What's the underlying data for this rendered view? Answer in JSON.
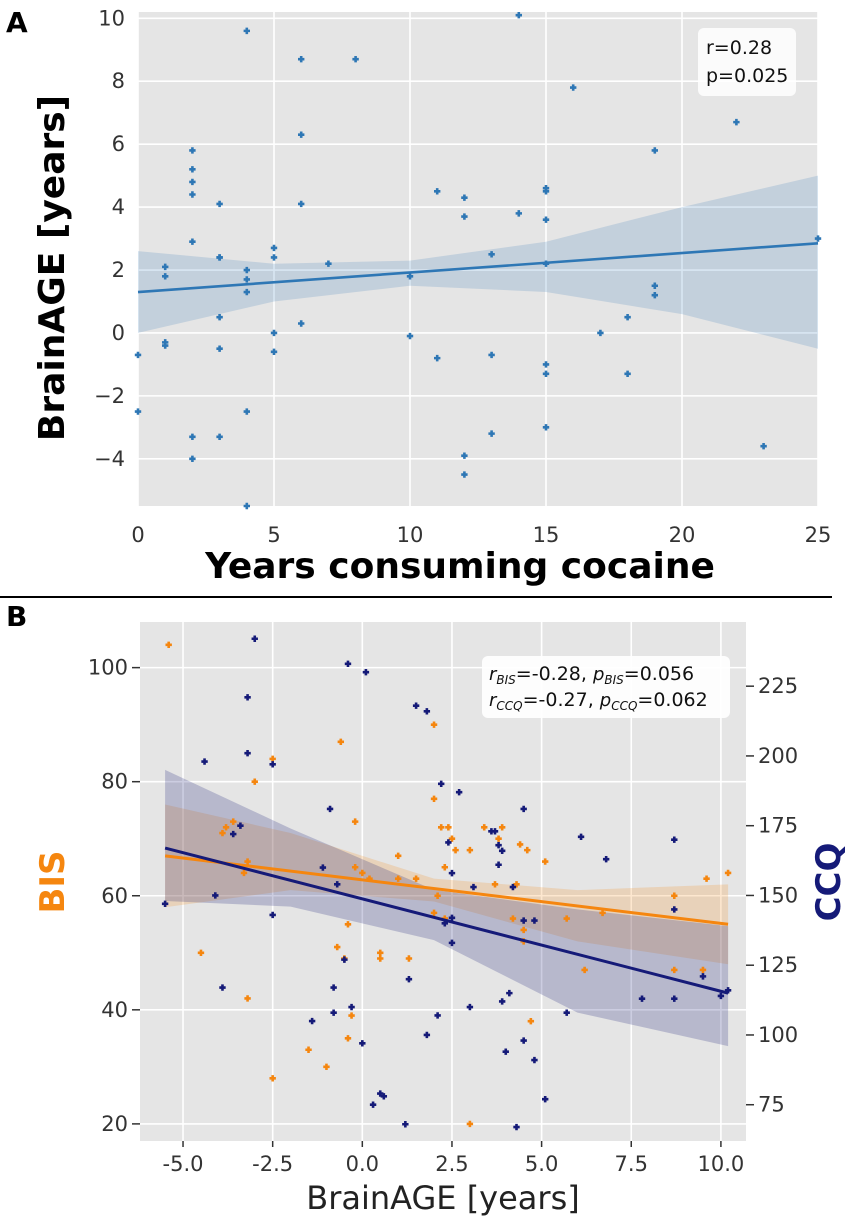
{
  "panels": {
    "a_label": "A",
    "b_label": "B"
  },
  "chart_data": [
    {
      "type": "scatter",
      "title": "",
      "xlabel": "Years consuming cocaine",
      "ylabel": "BrainAGE [years]",
      "xlim": [
        0,
        25
      ],
      "ylim": [
        -5.5,
        10.2
      ],
      "xticks": [
        0,
        5,
        10,
        15,
        20,
        25
      ],
      "yticks": [
        -4,
        -2,
        0,
        2,
        4,
        6,
        8,
        10
      ],
      "grid": true,
      "annotation": [
        "r=0.28",
        "p=0.025"
      ],
      "color": "#2e77b5",
      "points": [
        [
          4,
          9.6
        ],
        [
          6,
          8.7
        ],
        [
          8,
          8.7
        ],
        [
          14,
          10.1
        ],
        [
          16,
          7.8
        ],
        [
          22,
          6.7
        ],
        [
          6,
          6.3
        ],
        [
          2,
          5.8
        ],
        [
          19,
          5.8
        ],
        [
          2,
          5.2
        ],
        [
          2,
          4.8
        ],
        [
          2,
          4.4
        ],
        [
          3,
          4.1
        ],
        [
          6,
          4.1
        ],
        [
          11,
          4.5
        ],
        [
          12,
          4.3
        ],
        [
          12,
          3.7
        ],
        [
          14,
          3.8
        ],
        [
          15,
          4.5
        ],
        [
          15,
          4.6
        ],
        [
          15,
          3.6
        ],
        [
          2,
          2.9
        ],
        [
          3,
          2.4
        ],
        [
          3,
          2.4
        ],
        [
          5,
          2.7
        ],
        [
          5,
          2.4
        ],
        [
          7,
          2.2
        ],
        [
          13,
          2.5
        ],
        [
          15,
          2.2
        ],
        [
          25,
          3.0
        ],
        [
          1,
          2.1
        ],
        [
          1,
          1.8
        ],
        [
          4,
          2.0
        ],
        [
          4,
          1.7
        ],
        [
          4,
          1.3
        ],
        [
          10,
          1.8
        ],
        [
          19,
          1.5
        ],
        [
          19,
          1.2
        ],
        [
          3,
          0.5
        ],
        [
          6,
          0.3
        ],
        [
          18,
          0.5
        ],
        [
          5,
          0.0
        ],
        [
          17,
          0.0
        ],
        [
          1,
          -0.3
        ],
        [
          1,
          -0.4
        ],
        [
          3,
          -0.5
        ],
        [
          5,
          -0.6
        ],
        [
          10,
          -0.1
        ],
        [
          11,
          -0.8
        ],
        [
          13,
          -0.7
        ],
        [
          0,
          -0.7
        ],
        [
          15,
          -1.0
        ],
        [
          15,
          -1.3
        ],
        [
          18,
          -1.3
        ],
        [
          0,
          -2.5
        ],
        [
          4,
          -2.5
        ],
        [
          2,
          -3.3
        ],
        [
          3,
          -3.3
        ],
        [
          13,
          -3.2
        ],
        [
          15,
          -3.0
        ],
        [
          23,
          -3.6
        ],
        [
          2,
          -4.0
        ],
        [
          12,
          -3.9
        ],
        [
          12,
          -4.5
        ],
        [
          4,
          -5.5
        ]
      ],
      "fit": {
        "x": [
          0,
          25
        ],
        "y": [
          1.3,
          2.85
        ]
      },
      "ci_band": {
        "x": [
          0,
          5,
          10,
          15,
          20,
          25
        ],
        "lower": [
          0.0,
          1.0,
          1.5,
          1.3,
          0.6,
          -0.5
        ],
        "upper": [
          2.6,
          2.2,
          2.3,
          2.9,
          4.0,
          5.0
        ]
      }
    },
    {
      "type": "scatter",
      "title": "",
      "xlabel": "BrainAGE [years]",
      "ylabel": "BIS",
      "ylabel_right": "CCQ",
      "xlim": [
        -6.2,
        10.7
      ],
      "ylim": [
        17,
        108
      ],
      "ylim_right": [
        62,
        248
      ],
      "xticks": [
        -5.0,
        -2.5,
        0.0,
        2.5,
        5.0,
        7.5,
        10.0
      ],
      "xtick_labels": [
        "-5.0",
        "-2.5",
        "0.0",
        "2.5",
        "5.0",
        "7.5",
        "10.0"
      ],
      "yticks": [
        20,
        40,
        60,
        80,
        100
      ],
      "yticks_right": [
        75,
        100,
        125,
        150,
        175,
        200,
        225
      ],
      "grid": true,
      "annotation": {
        "line1": {
          "r_sub": "BIS",
          "r_val": "=-0.28, ",
          "p_sub": "BIS",
          "p_val": "=0.056"
        },
        "line2": {
          "r_sub": "CCQ",
          "r_val": "=-0.27, ",
          "p_sub": "CCQ",
          "p_val": "=0.062"
        },
        "r_symbol": "r",
        "p_symbol": "p"
      },
      "series": [
        {
          "name": "BIS",
          "axis": "left",
          "color": "#f5860f",
          "points": [
            [
              -5.4,
              104
            ],
            [
              -2.5,
              84
            ],
            [
              -3.0,
              80
            ],
            [
              -3.8,
              72
            ],
            [
              -3.6,
              73
            ],
            [
              -3.9,
              71
            ],
            [
              -3.2,
              66
            ],
            [
              -3.3,
              64
            ],
            [
              -4.5,
              50
            ],
            [
              -3.2,
              42
            ],
            [
              -2.5,
              28
            ],
            [
              -1.5,
              33
            ],
            [
              -1.0,
              30
            ],
            [
              -0.6,
              87
            ],
            [
              -0.2,
              73
            ],
            [
              0.0,
              64
            ],
            [
              0.2,
              63
            ],
            [
              -0.2,
              65
            ],
            [
              -0.4,
              55
            ],
            [
              -0.5,
              49
            ],
            [
              -0.7,
              51
            ],
            [
              -0.3,
              39
            ],
            [
              -0.4,
              35
            ],
            [
              0.5,
              50
            ],
            [
              0.5,
              49
            ],
            [
              1.0,
              67
            ],
            [
              1.0,
              63
            ],
            [
              1.5,
              63
            ],
            [
              1.3,
              49
            ],
            [
              2.0,
              90
            ],
            [
              2.0,
              77
            ],
            [
              2.2,
              72
            ],
            [
              2.4,
              72
            ],
            [
              2.5,
              70
            ],
            [
              2.3,
              65
            ],
            [
              2.6,
              68
            ],
            [
              2.1,
              60
            ],
            [
              2.3,
              56
            ],
            [
              2.0,
              57
            ],
            [
              3.0,
              20
            ],
            [
              3.0,
              68
            ],
            [
              3.4,
              72
            ],
            [
              3.9,
              72
            ],
            [
              3.8,
              70
            ],
            [
              4.4,
              69
            ],
            [
              4.6,
              68
            ],
            [
              4.3,
              62
            ],
            [
              3.7,
              62
            ],
            [
              4.2,
              56
            ],
            [
              4.5,
              54
            ],
            [
              4.5,
              52
            ],
            [
              4.7,
              38
            ],
            [
              5.1,
              66
            ],
            [
              5.7,
              56
            ],
            [
              6.2,
              47
            ],
            [
              6.7,
              57
            ],
            [
              8.7,
              60
            ],
            [
              8.7,
              47
            ],
            [
              9.5,
              47
            ],
            [
              9.6,
              63
            ],
            [
              10.2,
              64
            ]
          ]
        },
        {
          "name": "CCQ",
          "axis": "right",
          "color": "#151a78",
          "points": [
            [
              -5.5,
              147
            ],
            [
              -4.4,
              198
            ],
            [
              -3.9,
              117
            ],
            [
              -3.6,
              172
            ],
            [
              -3.4,
              175
            ],
            [
              -3.2,
              221
            ],
            [
              -3.2,
              201
            ],
            [
              -3.0,
              242
            ],
            [
              -2.5,
              143
            ],
            [
              -2.5,
              197
            ],
            [
              -4.1,
              150
            ],
            [
              -1.4,
              105
            ],
            [
              -1.1,
              160
            ],
            [
              -0.8,
              117
            ],
            [
              -0.9,
              181
            ],
            [
              -0.8,
              108
            ],
            [
              -0.7,
              154
            ],
            [
              -0.4,
              233
            ],
            [
              -0.5,
              127
            ],
            [
              -0.3,
              110
            ],
            [
              0.0,
              97
            ],
            [
              0.1,
              230
            ],
            [
              0.3,
              75
            ],
            [
              0.5,
              79
            ],
            [
              0.6,
              78
            ],
            [
              1.2,
              68
            ],
            [
              1.3,
              120
            ],
            [
              1.5,
              218
            ],
            [
              1.8,
              216
            ],
            [
              1.8,
              100
            ],
            [
              2.1,
              107
            ],
            [
              2.2,
              190
            ],
            [
              2.3,
              140
            ],
            [
              2.4,
              169
            ],
            [
              2.5,
              133
            ],
            [
              2.5,
              158
            ],
            [
              2.5,
              142
            ],
            [
              2.7,
              187
            ],
            [
              3.0,
              110
            ],
            [
              3.1,
              153
            ],
            [
              3.6,
              173
            ],
            [
              3.7,
              173
            ],
            [
              3.8,
              168
            ],
            [
              3.9,
              166
            ],
            [
              3.9,
              112
            ],
            [
              4.0,
              94
            ],
            [
              4.1,
              115
            ],
            [
              4.3,
              67
            ],
            [
              4.5,
              181
            ],
            [
              4.5,
              98
            ],
            [
              4.5,
              141
            ],
            [
              4.8,
              91
            ],
            [
              4.8,
              141
            ],
            [
              5.1,
              77
            ],
            [
              5.7,
              108
            ],
            [
              6.1,
              171
            ],
            [
              6.8,
              163
            ],
            [
              7.8,
              113
            ],
            [
              8.7,
              113
            ],
            [
              8.7,
              170
            ],
            [
              8.7,
              145
            ],
            [
              9.5,
              121
            ],
            [
              10.0,
              114
            ],
            [
              10.2,
              116
            ],
            [
              4.2,
              153
            ],
            [
              3.8,
              161
            ]
          ]
        }
      ],
      "fits": [
        {
          "name": "BIS",
          "x": [
            -5.5,
            10.2
          ],
          "y": [
            67.0,
            55.0
          ],
          "band_x": [
            -5.5,
            -2,
            2,
            6,
            10.2
          ],
          "band_lower": [
            58,
            61,
            59,
            52,
            48
          ],
          "band_upper": [
            76,
            71,
            63,
            61,
            62
          ]
        },
        {
          "name": "CCQ",
          "x": [
            -5.5,
            10.2
          ],
          "y": [
            167,
            115
          ],
          "band_x": [
            -5.5,
            -2,
            2,
            6,
            10.2
          ],
          "band_lower": [
            148,
            146,
            134,
            108,
            96
          ],
          "band_upper": [
            195,
            174,
            152,
            145,
            139
          ]
        }
      ]
    }
  ]
}
